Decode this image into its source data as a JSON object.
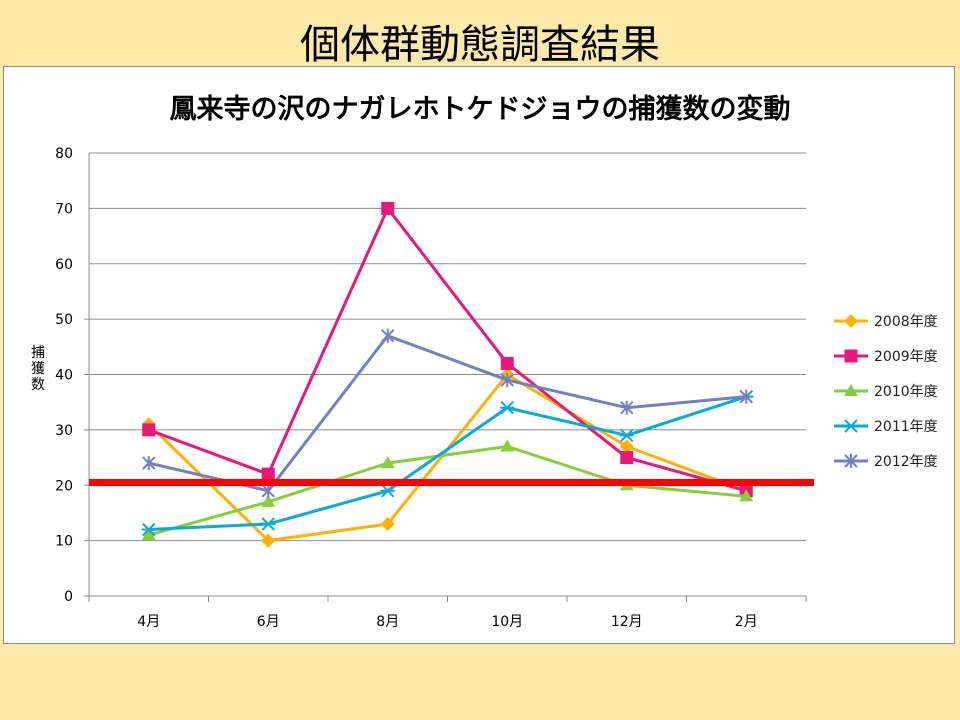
{
  "slide": {
    "title": "個体群動態調査結果"
  },
  "chart_data": {
    "type": "line",
    "title": "鳳来寺の沢のナガレホトケドジョウの捕獲数の変動",
    "xlabel": "",
    "ylabel": "捕獲数",
    "categories": [
      "4月",
      "6月",
      "8月",
      "10月",
      "12月",
      "2月"
    ],
    "ylim": [
      0,
      80
    ],
    "yticks": [
      0,
      10,
      20,
      30,
      40,
      50,
      60,
      70,
      80
    ],
    "grid": true,
    "legend_position": "right",
    "series": [
      {
        "name": "2008年度",
        "values": [
          31,
          10,
          13,
          40,
          27,
          19
        ],
        "color": "#ffb000",
        "marker": "diamond"
      },
      {
        "name": "2009年度",
        "values": [
          30,
          22,
          70,
          42,
          25,
          19
        ],
        "color": "#e8177a",
        "marker": "square"
      },
      {
        "name": "2010年度",
        "values": [
          11,
          17,
          24,
          27,
          20,
          18
        ],
        "color": "#86cf3a",
        "marker": "triangle"
      },
      {
        "name": "2011年度",
        "values": [
          12,
          13,
          19,
          34,
          29,
          36
        ],
        "color": "#0aaad8",
        "marker": "asterisk"
      },
      {
        "name": "2012年度",
        "values": [
          24,
          19,
          47,
          39,
          34,
          36
        ],
        "color": "#7080c0",
        "marker": "x-star"
      }
    ],
    "reference_line": {
      "value": 20.5,
      "color": "#ff0000"
    }
  }
}
